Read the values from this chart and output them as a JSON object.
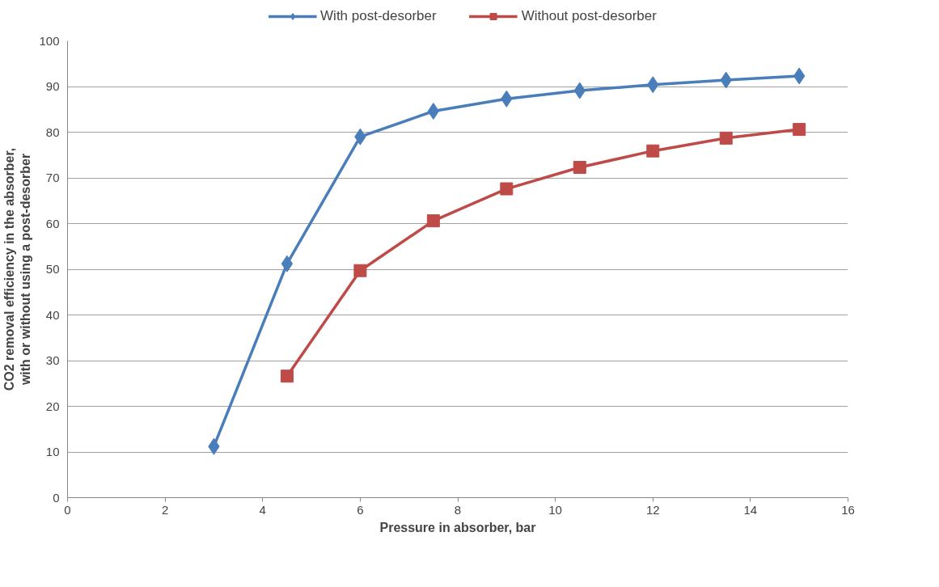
{
  "chart_data": {
    "type": "line",
    "xlabel": "Pressure in absorber, bar",
    "ylabel": "CO2 removal efficiency in the absorber, with or without using a post-desorber",
    "xlim": [
      0,
      16
    ],
    "xticks": [
      0,
      2,
      4,
      6,
      8,
      10,
      12,
      14,
      16
    ],
    "ylim": [
      0,
      100
    ],
    "yticks": [
      0,
      10,
      20,
      30,
      40,
      50,
      60,
      70,
      80,
      90,
      100
    ],
    "grid": "y",
    "legend": "top",
    "line_style": "solid",
    "series": [
      {
        "name": "With post-desorber",
        "color": "#4a7ebb",
        "marker": "diamond",
        "x": [
          3,
          4.5,
          6,
          7.5,
          9,
          10.5,
          12,
          13.5,
          15
        ],
        "values": [
          11.2,
          51.2,
          79,
          84.6,
          87.3,
          89.1,
          90.4,
          91.4,
          92.3
        ]
      },
      {
        "name": "Without post-desorber",
        "color": "#be4b48",
        "marker": "square",
        "x": [
          4.5,
          6,
          7.5,
          9,
          10.5,
          12,
          13.5,
          15
        ],
        "values": [
          26.6,
          49.7,
          60.6,
          67.6,
          72.3,
          75.9,
          78.7,
          80.6
        ]
      }
    ]
  }
}
